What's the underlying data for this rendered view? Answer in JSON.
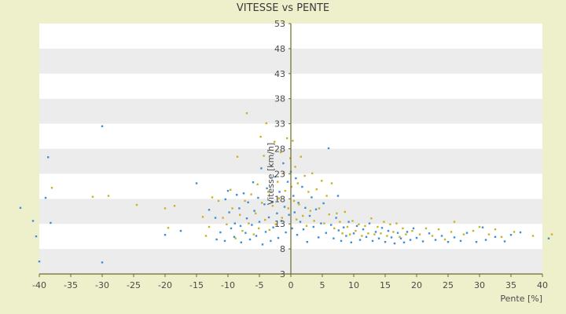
{
  "chart_data": {
    "type": "scatter",
    "title": "VITESSE vs PENTE",
    "xlabel": "Pente [%]",
    "ylabel": "Vitesse [km/h]",
    "xlim": [
      -40,
      40
    ],
    "ylim": [
      3,
      53
    ],
    "x_ticks": [
      -40,
      -35,
      -30,
      -25,
      -20,
      -15,
      -10,
      -5,
      0,
      5,
      10,
      15,
      20,
      25,
      30,
      35,
      40
    ],
    "y_ticks": [
      3,
      8,
      13,
      18,
      23,
      28,
      33,
      38,
      43,
      48,
      53
    ],
    "grid": "horizontal alternating bands",
    "colors": {
      "series_1": "#3b8fd8",
      "series_2": "#c9b227",
      "axis": "#6b6b2a",
      "band": "#ececec"
    },
    "series": [
      {
        "color": "#3b8fd8",
        "points": [
          [
            -43,
            16.2
          ],
          [
            -41,
            13.6
          ],
          [
            -40.5,
            10.5
          ],
          [
            -40,
            5.5
          ],
          [
            -39,
            18.2
          ],
          [
            -38.6,
            26.3
          ],
          [
            -38.2,
            13.2
          ],
          [
            -30,
            32.5
          ],
          [
            -30,
            5.3
          ],
          [
            -20,
            10.8
          ],
          [
            -17.5,
            11.6
          ],
          [
            -15,
            21.1
          ],
          [
            -13,
            15.8
          ],
          [
            -12,
            14.2
          ],
          [
            -11.8,
            9.9
          ],
          [
            -11.2,
            11.3
          ],
          [
            -10.5,
            9.6
          ],
          [
            -10.4,
            17.9
          ],
          [
            -10,
            19.6
          ],
          [
            -9.8,
            15.3
          ],
          [
            -9.5,
            12.1
          ],
          [
            -9,
            10.4
          ],
          [
            -8.9,
            13.1
          ],
          [
            -8.6,
            18.8
          ],
          [
            -8.2,
            16.1
          ],
          [
            -8,
            12.6
          ],
          [
            -7.9,
            9.3
          ],
          [
            -7.5,
            19.1
          ],
          [
            -7.2,
            11.2
          ],
          [
            -7,
            14.1
          ],
          [
            -6.8,
            17.3
          ],
          [
            -6.5,
            9.9
          ],
          [
            -6.2,
            12.8
          ],
          [
            -6,
            21.3
          ],
          [
            -5.8,
            15.6
          ],
          [
            -5.5,
            10.6
          ],
          [
            -5.2,
            18.2
          ],
          [
            -5,
            13.4
          ],
          [
            -4.7,
            24.1
          ],
          [
            -4.5,
            8.9
          ],
          [
            -4.2,
            16.9
          ],
          [
            -4,
            11.4
          ],
          [
            -3.8,
            20.1
          ],
          [
            -3.5,
            14.3
          ],
          [
            -3.2,
            9.6
          ],
          [
            -3,
            17.4
          ],
          [
            -2.8,
            12.3
          ],
          [
            -2.5,
            22.4
          ],
          [
            -2.2,
            15.1
          ],
          [
            -2,
            10.2
          ],
          [
            -1.8,
            19.4
          ],
          [
            -1.5,
            13.6
          ],
          [
            -1.2,
            25.1
          ],
          [
            -1,
            16.4
          ],
          [
            -0.8,
            11.3
          ],
          [
            -0.5,
            21.4
          ],
          [
            -0.3,
            14.8
          ],
          [
            0,
            23.4
          ],
          [
            0.2,
            12.1
          ],
          [
            0.4,
            18.6
          ],
          [
            0.6,
            15.3
          ],
          [
            0.8,
            22.1
          ],
          [
            1,
            10.8
          ],
          [
            1.2,
            17.2
          ],
          [
            1.5,
            13.4
          ],
          [
            1.8,
            20.4
          ],
          [
            2,
            11.9
          ],
          [
            2.3,
            16.2
          ],
          [
            2.6,
            9.4
          ],
          [
            3,
            14.6
          ],
          [
            3.3,
            18.3
          ],
          [
            3.6,
            12.4
          ],
          [
            4,
            15.9
          ],
          [
            4.4,
            10.3
          ],
          [
            4.8,
            13.1
          ],
          [
            5.2,
            17.1
          ],
          [
            5.6,
            11.2
          ],
          [
            6,
            28.1
          ],
          [
            6.4,
            12.8
          ],
          [
            6.8,
            10.1
          ],
          [
            7.2,
            14.2
          ],
          [
            7.6,
            11.7
          ],
          [
            8,
            9.6
          ],
          [
            7.5,
            18.6
          ],
          [
            8.4,
            12.3
          ],
          [
            8.8,
            10.6
          ],
          [
            9.2,
            13.4
          ],
          [
            9.6,
            9.3
          ],
          [
            10,
            11.1
          ],
          [
            10.5,
            12.6
          ],
          [
            11,
            9.8
          ],
          [
            11.5,
            11.9
          ],
          [
            12,
            10.4
          ],
          [
            12.5,
            13.1
          ],
          [
            13,
            9.6
          ],
          [
            13.5,
            11.4
          ],
          [
            14,
            10.1
          ],
          [
            14.5,
            12.2
          ],
          [
            15,
            9.4
          ],
          [
            15.5,
            11.6
          ],
          [
            16,
            10.3
          ],
          [
            16.5,
            9.1
          ],
          [
            17,
            11.2
          ],
          [
            17.5,
            10.1
          ],
          [
            18,
            9.3
          ],
          [
            18.5,
            11.4
          ],
          [
            19,
            9.8
          ],
          [
            19.5,
            12.1
          ],
          [
            20,
            10.2
          ],
          [
            21,
            9.5
          ],
          [
            22,
            11.1
          ],
          [
            23,
            9.8
          ],
          [
            24,
            10.6
          ],
          [
            25,
            9.4
          ],
          [
            26,
            10.3
          ],
          [
            27,
            9.6
          ],
          [
            28,
            11.2
          ],
          [
            29.5,
            9.4
          ],
          [
            30.5,
            12.3
          ],
          [
            31,
            9.8
          ],
          [
            32.5,
            10.4
          ],
          [
            34,
            9.5
          ],
          [
            35,
            10.8
          ],
          [
            36.5,
            11.3
          ],
          [
            41,
            10.1
          ]
        ]
      },
      {
        "color": "#c9b227",
        "points": [
          [
            -38,
            20.2
          ],
          [
            -31.5,
            18.4
          ],
          [
            -29,
            18.6
          ],
          [
            -24.5,
            16.8
          ],
          [
            -20,
            16.1
          ],
          [
            -19.5,
            12.2
          ],
          [
            -18.5,
            16.6
          ],
          [
            -14,
            14.4
          ],
          [
            -13.5,
            10.6
          ],
          [
            -13,
            12.4
          ],
          [
            -12.5,
            18.3
          ],
          [
            -11.5,
            17.6
          ],
          [
            -10.8,
            14.2
          ],
          [
            -10.2,
            12.9
          ],
          [
            -9.6,
            19.8
          ],
          [
            -9.3,
            16.1
          ],
          [
            -8.8,
            10.1
          ],
          [
            -8.5,
            26.4
          ],
          [
            -8.1,
            14.8
          ],
          [
            -7.7,
            11.6
          ],
          [
            -7.3,
            17.6
          ],
          [
            -7,
            35.1
          ],
          [
            -6.7,
            13.1
          ],
          [
            -6.3,
            18.9
          ],
          [
            -5.9,
            10.9
          ],
          [
            -5.6,
            15.1
          ],
          [
            -5.3,
            20.9
          ],
          [
            -5.1,
            12.1
          ],
          [
            -4.8,
            30.4
          ],
          [
            -4.6,
            17.2
          ],
          [
            -4.3,
            26.6
          ],
          [
            -4.1,
            13.8
          ],
          [
            -3.9,
            33.1
          ],
          [
            -3.6,
            19.4
          ],
          [
            -3.4,
            11.8
          ],
          [
            -3.1,
            24.6
          ],
          [
            -2.9,
            16.6
          ],
          [
            -2.6,
            29.4
          ],
          [
            -2.4,
            12.9
          ],
          [
            -2.1,
            21.4
          ],
          [
            -1.9,
            18.1
          ],
          [
            -1.6,
            27.3
          ],
          [
            -1.4,
            14.2
          ],
          [
            -1.1,
            23.1
          ],
          [
            -0.9,
            19.6
          ],
          [
            -0.6,
            30.1
          ],
          [
            -0.4,
            16.1
          ],
          [
            -0.1,
            26.1
          ],
          [
            0.1,
            20.4
          ],
          [
            0.3,
            29.6
          ],
          [
            0.5,
            17.6
          ],
          [
            0.7,
            24.4
          ],
          [
            0.9,
            13.9
          ],
          [
            1.1,
            21.1
          ],
          [
            1.3,
            16.9
          ],
          [
            1.6,
            26.4
          ],
          [
            1.9,
            14.6
          ],
          [
            2.2,
            22.6
          ],
          [
            2.5,
            12.6
          ],
          [
            2.8,
            19.4
          ],
          [
            3.1,
            15.6
          ],
          [
            3.4,
            23.1
          ],
          [
            3.7,
            13.6
          ],
          [
            4.1,
            19.9
          ],
          [
            4.5,
            16.1
          ],
          [
            4.9,
            21.6
          ],
          [
            5.3,
            13.1
          ],
          [
            5.7,
            18.6
          ],
          [
            6.1,
            14.9
          ],
          [
            6.5,
            21.1
          ],
          [
            6.9,
            12.1
          ],
          [
            7.3,
            15.1
          ],
          [
            7.8,
            13.4
          ],
          [
            8.2,
            11.1
          ],
          [
            8.6,
            15.4
          ],
          [
            9,
            12.4
          ],
          [
            9.4,
            10.9
          ],
          [
            9.8,
            13.6
          ],
          [
            10.3,
            11.6
          ],
          [
            10.8,
            12.9
          ],
          [
            11.3,
            10.6
          ],
          [
            11.8,
            12.6
          ],
          [
            12.3,
            11.1
          ],
          [
            12.8,
            14.1
          ],
          [
            13.3,
            10.9
          ],
          [
            13.8,
            12.4
          ],
          [
            14.3,
            11.1
          ],
          [
            14.8,
            13.4
          ],
          [
            15.3,
            10.6
          ],
          [
            15.8,
            12.9
          ],
          [
            16.3,
            11.4
          ],
          [
            16.8,
            13.1
          ],
          [
            17.3,
            10.4
          ],
          [
            17.8,
            12.1
          ],
          [
            18.3,
            10.9
          ],
          [
            19.3,
            11.6
          ],
          [
            20.5,
            10.9
          ],
          [
            21.5,
            12.1
          ],
          [
            22.5,
            10.6
          ],
          [
            23.5,
            11.9
          ],
          [
            24.5,
            9.9
          ],
          [
            25.5,
            11.4
          ],
          [
            26,
            13.4
          ],
          [
            27.5,
            10.9
          ],
          [
            29,
            11.6
          ],
          [
            30,
            12.4
          ],
          [
            31.5,
            10.9
          ],
          [
            32.5,
            11.9
          ],
          [
            33.5,
            10.4
          ],
          [
            35.5,
            11.4
          ],
          [
            38.5,
            10.6
          ],
          [
            41.5,
            10.9
          ]
        ]
      }
    ]
  }
}
